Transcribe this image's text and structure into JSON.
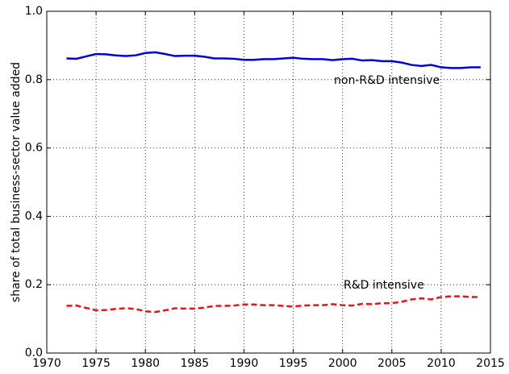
{
  "chart_data": {
    "type": "line",
    "ylabel": "share of total business-sector value added",
    "x": [
      1972,
      1973,
      1974,
      1975,
      1976,
      1977,
      1978,
      1979,
      1980,
      1981,
      1982,
      1983,
      1984,
      1985,
      1986,
      1987,
      1988,
      1989,
      1990,
      1991,
      1992,
      1993,
      1994,
      1995,
      1996,
      1997,
      1998,
      1999,
      2000,
      2001,
      2002,
      2003,
      2004,
      2005,
      2006,
      2007,
      2008,
      2009,
      2010,
      2011,
      2012,
      2013,
      2014
    ],
    "series": [
      {
        "name": "non-R&D intensive",
        "color": "#0000dd",
        "linestyle": "solid",
        "values": [
          0.862,
          0.861,
          0.868,
          0.875,
          0.874,
          0.871,
          0.869,
          0.871,
          0.878,
          0.88,
          0.875,
          0.869,
          0.87,
          0.87,
          0.867,
          0.862,
          0.862,
          0.861,
          0.858,
          0.858,
          0.86,
          0.86,
          0.862,
          0.864,
          0.861,
          0.86,
          0.86,
          0.857,
          0.86,
          0.861,
          0.856,
          0.857,
          0.854,
          0.854,
          0.85,
          0.843,
          0.84,
          0.843,
          0.836,
          0.834,
          0.834,
          0.836,
          0.836
        ]
      },
      {
        "name": "R&D intensive",
        "color": "#ee1111",
        "linestyle": "dashed",
        "values": [
          0.138,
          0.139,
          0.132,
          0.125,
          0.126,
          0.129,
          0.131,
          0.129,
          0.122,
          0.12,
          0.125,
          0.131,
          0.13,
          0.13,
          0.133,
          0.138,
          0.138,
          0.139,
          0.142,
          0.142,
          0.14,
          0.14,
          0.138,
          0.136,
          0.139,
          0.14,
          0.14,
          0.143,
          0.14,
          0.139,
          0.144,
          0.143,
          0.146,
          0.146,
          0.15,
          0.157,
          0.16,
          0.157,
          0.164,
          0.166,
          0.166,
          0.164,
          0.164
        ]
      }
    ],
    "xlim": [
      1970,
      2015
    ],
    "xticks": [
      1970,
      1975,
      1980,
      1985,
      1990,
      1995,
      2000,
      2005,
      2010,
      2015
    ],
    "ylim": [
      0,
      1
    ],
    "yticks": [
      {
        "value": 0,
        "label": "0.0"
      },
      {
        "value": 0.2,
        "label": "0.2"
      },
      {
        "value": 0.4,
        "label": "0.4"
      },
      {
        "value": 0.6,
        "label": "0.6"
      },
      {
        "value": 0.8,
        "label": "0.8"
      },
      {
        "value": 1,
        "label": "1.0"
      }
    ],
    "grid": true
  }
}
